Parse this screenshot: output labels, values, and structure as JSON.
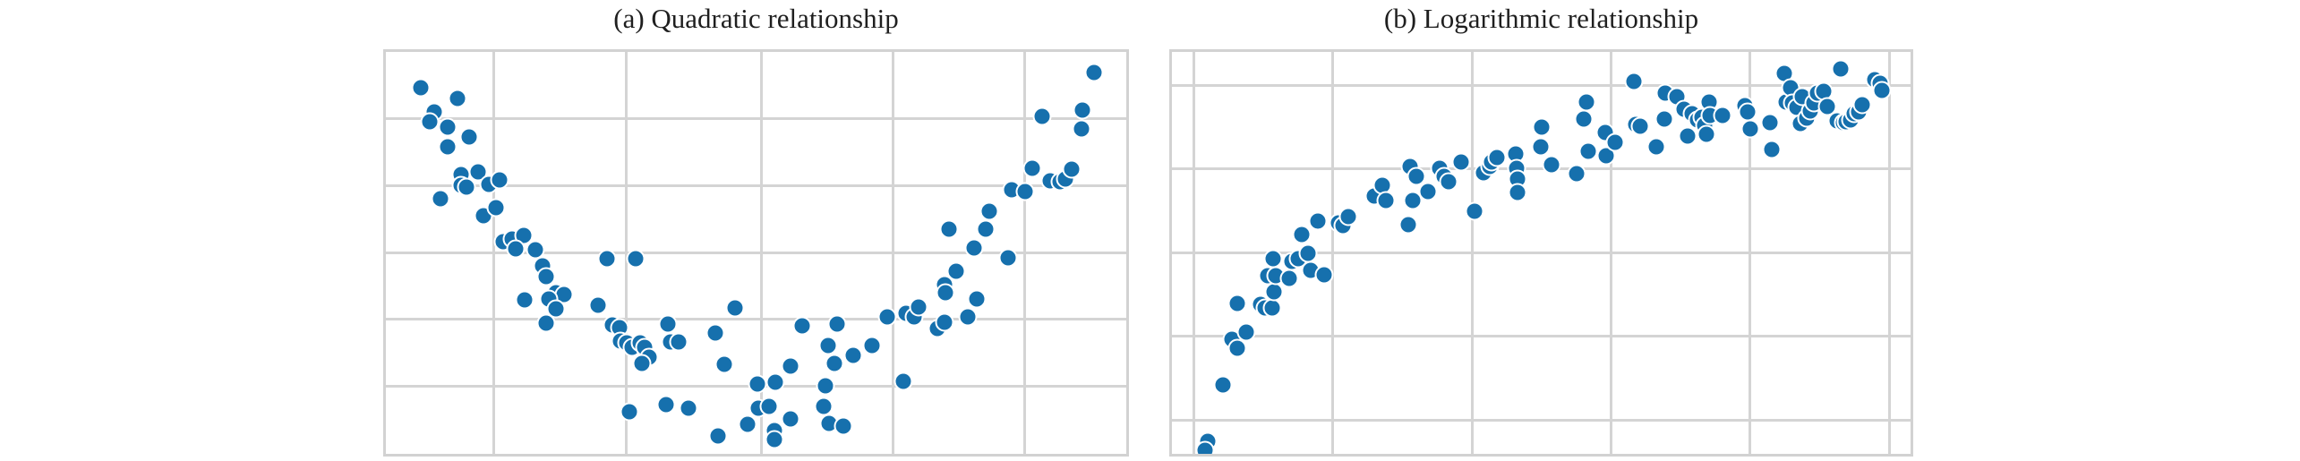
{
  "colors": {
    "dot_fill": "#1670ad",
    "dot_edge": "#ffffff",
    "grid": "#d4d4d4",
    "spine": "#d2d2d2",
    "title_text": "#1f1f1f",
    "background": "#ffffff"
  },
  "chart_data": [
    {
      "id": "panel-a",
      "type": "scatter",
      "title": "(a) Quadratic relationship",
      "xlabel": "",
      "ylabel": "",
      "legend": "none",
      "grid": true,
      "axis_tick_labels_visible": false,
      "shape": "u-shaped cloud, high at both ends, minimum near 55-60% across",
      "units": "percent_of_plot_area_from_top_left",
      "x_gridlines_pct": [
        14.6,
        32.5,
        50.7,
        68.5,
        86.3
      ],
      "y_gridlines_pct": [
        16.5,
        33.2,
        49.9,
        66.4,
        83.1
      ],
      "points_pct": [
        [
          4.7,
          9.0
        ],
        [
          9.7,
          11.6
        ],
        [
          6.5,
          14.9
        ],
        [
          5.9,
          17.4
        ],
        [
          8.4,
          18.7
        ],
        [
          11.2,
          21.1
        ],
        [
          8.3,
          23.7
        ],
        [
          10.1,
          30.5
        ],
        [
          12.5,
          29.9
        ],
        [
          10.2,
          33.2
        ],
        [
          10.9,
          33.6
        ],
        [
          7.4,
          36.5
        ],
        [
          13.9,
          33.0
        ],
        [
          15.4,
          31.9
        ],
        [
          13.2,
          40.7
        ],
        [
          14.9,
          38.7
        ],
        [
          15.8,
          47.3
        ],
        [
          17.0,
          46.6
        ],
        [
          18.6,
          45.7
        ],
        [
          17.5,
          49.0
        ],
        [
          20.2,
          49.2
        ],
        [
          21.2,
          53.2
        ],
        [
          21.6,
          55.8
        ],
        [
          29.9,
          51.4
        ],
        [
          33.7,
          51.4
        ],
        [
          23.0,
          59.8
        ],
        [
          24.1,
          60.4
        ],
        [
          18.8,
          61.8
        ],
        [
          22.0,
          61.5
        ],
        [
          23.0,
          64.0
        ],
        [
          21.6,
          67.5
        ],
        [
          28.7,
          63.1
        ],
        [
          30.6,
          67.9
        ],
        [
          31.6,
          68.6
        ],
        [
          31.7,
          71.9
        ],
        [
          32.5,
          72.3
        ],
        [
          33.3,
          73.6
        ],
        [
          34.3,
          72.3
        ],
        [
          34.9,
          73.6
        ],
        [
          35.5,
          76.0
        ],
        [
          34.6,
          77.4
        ],
        [
          38.1,
          67.7
        ],
        [
          38.4,
          72.1
        ],
        [
          39.5,
          72.1
        ],
        [
          44.5,
          69.9
        ],
        [
          47.2,
          63.7
        ],
        [
          45.7,
          77.8
        ],
        [
          32.9,
          89.5
        ],
        [
          37.9,
          87.7
        ],
        [
          40.9,
          88.6
        ],
        [
          44.9,
          95.6
        ],
        [
          48.9,
          92.7
        ],
        [
          50.2,
          82.6
        ],
        [
          50.3,
          88.6
        ],
        [
          52.6,
          82.2
        ],
        [
          51.7,
          88.1
        ],
        [
          52.5,
          94.1
        ],
        [
          52.5,
          96.5
        ],
        [
          54.7,
          91.4
        ],
        [
          54.6,
          78.2
        ],
        [
          56.2,
          68.1
        ],
        [
          59.1,
          88.1
        ],
        [
          59.4,
          83.1
        ],
        [
          59.7,
          73.0
        ],
        [
          59.8,
          92.5
        ],
        [
          60.6,
          77.4
        ],
        [
          61.0,
          67.7
        ],
        [
          61.8,
          93.2
        ],
        [
          63.1,
          75.4
        ],
        [
          65.7,
          73.0
        ],
        [
          67.7,
          65.9
        ],
        [
          69.9,
          82.0
        ],
        [
          70.3,
          65.1
        ],
        [
          71.4,
          65.9
        ],
        [
          72.0,
          63.5
        ],
        [
          74.5,
          68.8
        ],
        [
          75.5,
          67.3
        ],
        [
          75.5,
          58.0
        ],
        [
          75.6,
          60.0
        ],
        [
          76.0,
          44.0
        ],
        [
          77.0,
          54.5
        ],
        [
          78.6,
          65.9
        ],
        [
          79.4,
          48.8
        ],
        [
          79.8,
          61.5
        ],
        [
          81.0,
          44.0
        ],
        [
          81.5,
          39.6
        ],
        [
          84.0,
          51.2
        ],
        [
          84.5,
          34.3
        ],
        [
          86.3,
          34.7
        ],
        [
          87.3,
          29.0
        ],
        [
          88.6,
          16.0
        ],
        [
          89.7,
          32.1
        ],
        [
          91.1,
          32.3
        ],
        [
          91.8,
          31.6
        ],
        [
          92.6,
          29.2
        ],
        [
          93.9,
          19.1
        ],
        [
          94.1,
          14.5
        ],
        [
          95.7,
          5.1
        ]
      ]
    },
    {
      "id": "panel-b",
      "type": "scatter",
      "title": "(b) Logarithmic relationship",
      "xlabel": "",
      "ylabel": "",
      "legend": "none",
      "grid": true,
      "axis_tick_labels_visible": false,
      "shape": "steep rise at left flattening to plateau near top right",
      "units": "percent_of_plot_area_from_top_left",
      "x_gridlines_pct": [
        3.0,
        21.8,
        40.7,
        59.4,
        78.2,
        97.1
      ],
      "y_gridlines_pct": [
        8.4,
        29.0,
        49.9,
        70.8,
        91.6
      ],
      "points_pct": [
        [
          4.9,
          96.9
        ],
        [
          4.5,
          99.1
        ],
        [
          6.9,
          82.9
        ],
        [
          8.1,
          71.6
        ],
        [
          8.9,
          73.8
        ],
        [
          10.1,
          69.7
        ],
        [
          8.9,
          62.6
        ],
        [
          12.0,
          62.9
        ],
        [
          12.6,
          63.7
        ],
        [
          13.6,
          63.7
        ],
        [
          13.8,
          59.6
        ],
        [
          13.7,
          51.4
        ],
        [
          13.0,
          55.6
        ],
        [
          14.1,
          55.6
        ],
        [
          15.9,
          56.3
        ],
        [
          16.2,
          52.1
        ],
        [
          17.1,
          51.4
        ],
        [
          18.4,
          50.1
        ],
        [
          18.8,
          54.3
        ],
        [
          20.6,
          55.4
        ],
        [
          17.6,
          45.5
        ],
        [
          19.7,
          42.2
        ],
        [
          22.5,
          42.6
        ],
        [
          23.2,
          43.3
        ],
        [
          23.9,
          40.9
        ],
        [
          27.4,
          35.8
        ],
        [
          28.5,
          33.2
        ],
        [
          29.0,
          36.9
        ],
        [
          32.3,
          28.4
        ],
        [
          33.1,
          31.0
        ],
        [
          32.6,
          36.9
        ],
        [
          32.0,
          42.9
        ],
        [
          34.7,
          34.7
        ],
        [
          36.2,
          29.0
        ],
        [
          36.9,
          31.0
        ],
        [
          37.5,
          32.3
        ],
        [
          39.1,
          27.3
        ],
        [
          41.0,
          39.6
        ],
        [
          42.2,
          30.1
        ],
        [
          43.0,
          28.4
        ],
        [
          43.3,
          27.5
        ],
        [
          44.0,
          26.2
        ],
        [
          46.5,
          25.3
        ],
        [
          46.7,
          29.0
        ],
        [
          46.8,
          31.6
        ],
        [
          46.8,
          34.9
        ],
        [
          50.1,
          18.7
        ],
        [
          49.9,
          23.7
        ],
        [
          51.4,
          28.1
        ],
        [
          54.8,
          30.3
        ],
        [
          56.1,
          12.5
        ],
        [
          55.8,
          16.7
        ],
        [
          56.4,
          24.8
        ],
        [
          58.7,
          20.0
        ],
        [
          58.8,
          25.9
        ],
        [
          60.0,
          22.6
        ],
        [
          62.5,
          7.3
        ],
        [
          62.8,
          18.0
        ],
        [
          63.4,
          18.5
        ],
        [
          65.6,
          23.5
        ],
        [
          66.7,
          16.7
        ],
        [
          66.8,
          10.3
        ],
        [
          68.4,
          11.2
        ],
        [
          69.3,
          14.3
        ],
        [
          69.8,
          20.9
        ],
        [
          70.4,
          15.4
        ],
        [
          71.1,
          16.9
        ],
        [
          71.7,
          16.3
        ],
        [
          72.1,
          18.2
        ],
        [
          72.7,
          12.5
        ],
        [
          72.9,
          15.8
        ],
        [
          72.4,
          20.4
        ],
        [
          74.6,
          15.8
        ],
        [
          77.6,
          13.4
        ],
        [
          77.9,
          14.9
        ],
        [
          78.3,
          19.1
        ],
        [
          81.0,
          17.6
        ],
        [
          81.2,
          24.2
        ],
        [
          82.9,
          5.3
        ],
        [
          83.2,
          12.5
        ],
        [
          83.8,
          8.8
        ],
        [
          84.0,
          12.7
        ],
        [
          84.6,
          13.8
        ],
        [
          85.1,
          17.8
        ],
        [
          85.3,
          11.2
        ],
        [
          85.9,
          16.5
        ],
        [
          86.4,
          14.7
        ],
        [
          86.9,
          12.7
        ],
        [
          87.4,
          10.3
        ],
        [
          88.2,
          9.7
        ],
        [
          88.7,
          13.6
        ],
        [
          90.1,
          17.1
        ],
        [
          90.6,
          4.2
        ],
        [
          90.9,
          17.6
        ],
        [
          91.3,
          17.4
        ],
        [
          91.9,
          16.9
        ],
        [
          92.4,
          15.4
        ],
        [
          93.0,
          14.9
        ],
        [
          93.5,
          13.2
        ],
        [
          95.1,
          6.8
        ],
        [
          95.9,
          7.7
        ],
        [
          96.1,
          9.5
        ]
      ]
    }
  ]
}
